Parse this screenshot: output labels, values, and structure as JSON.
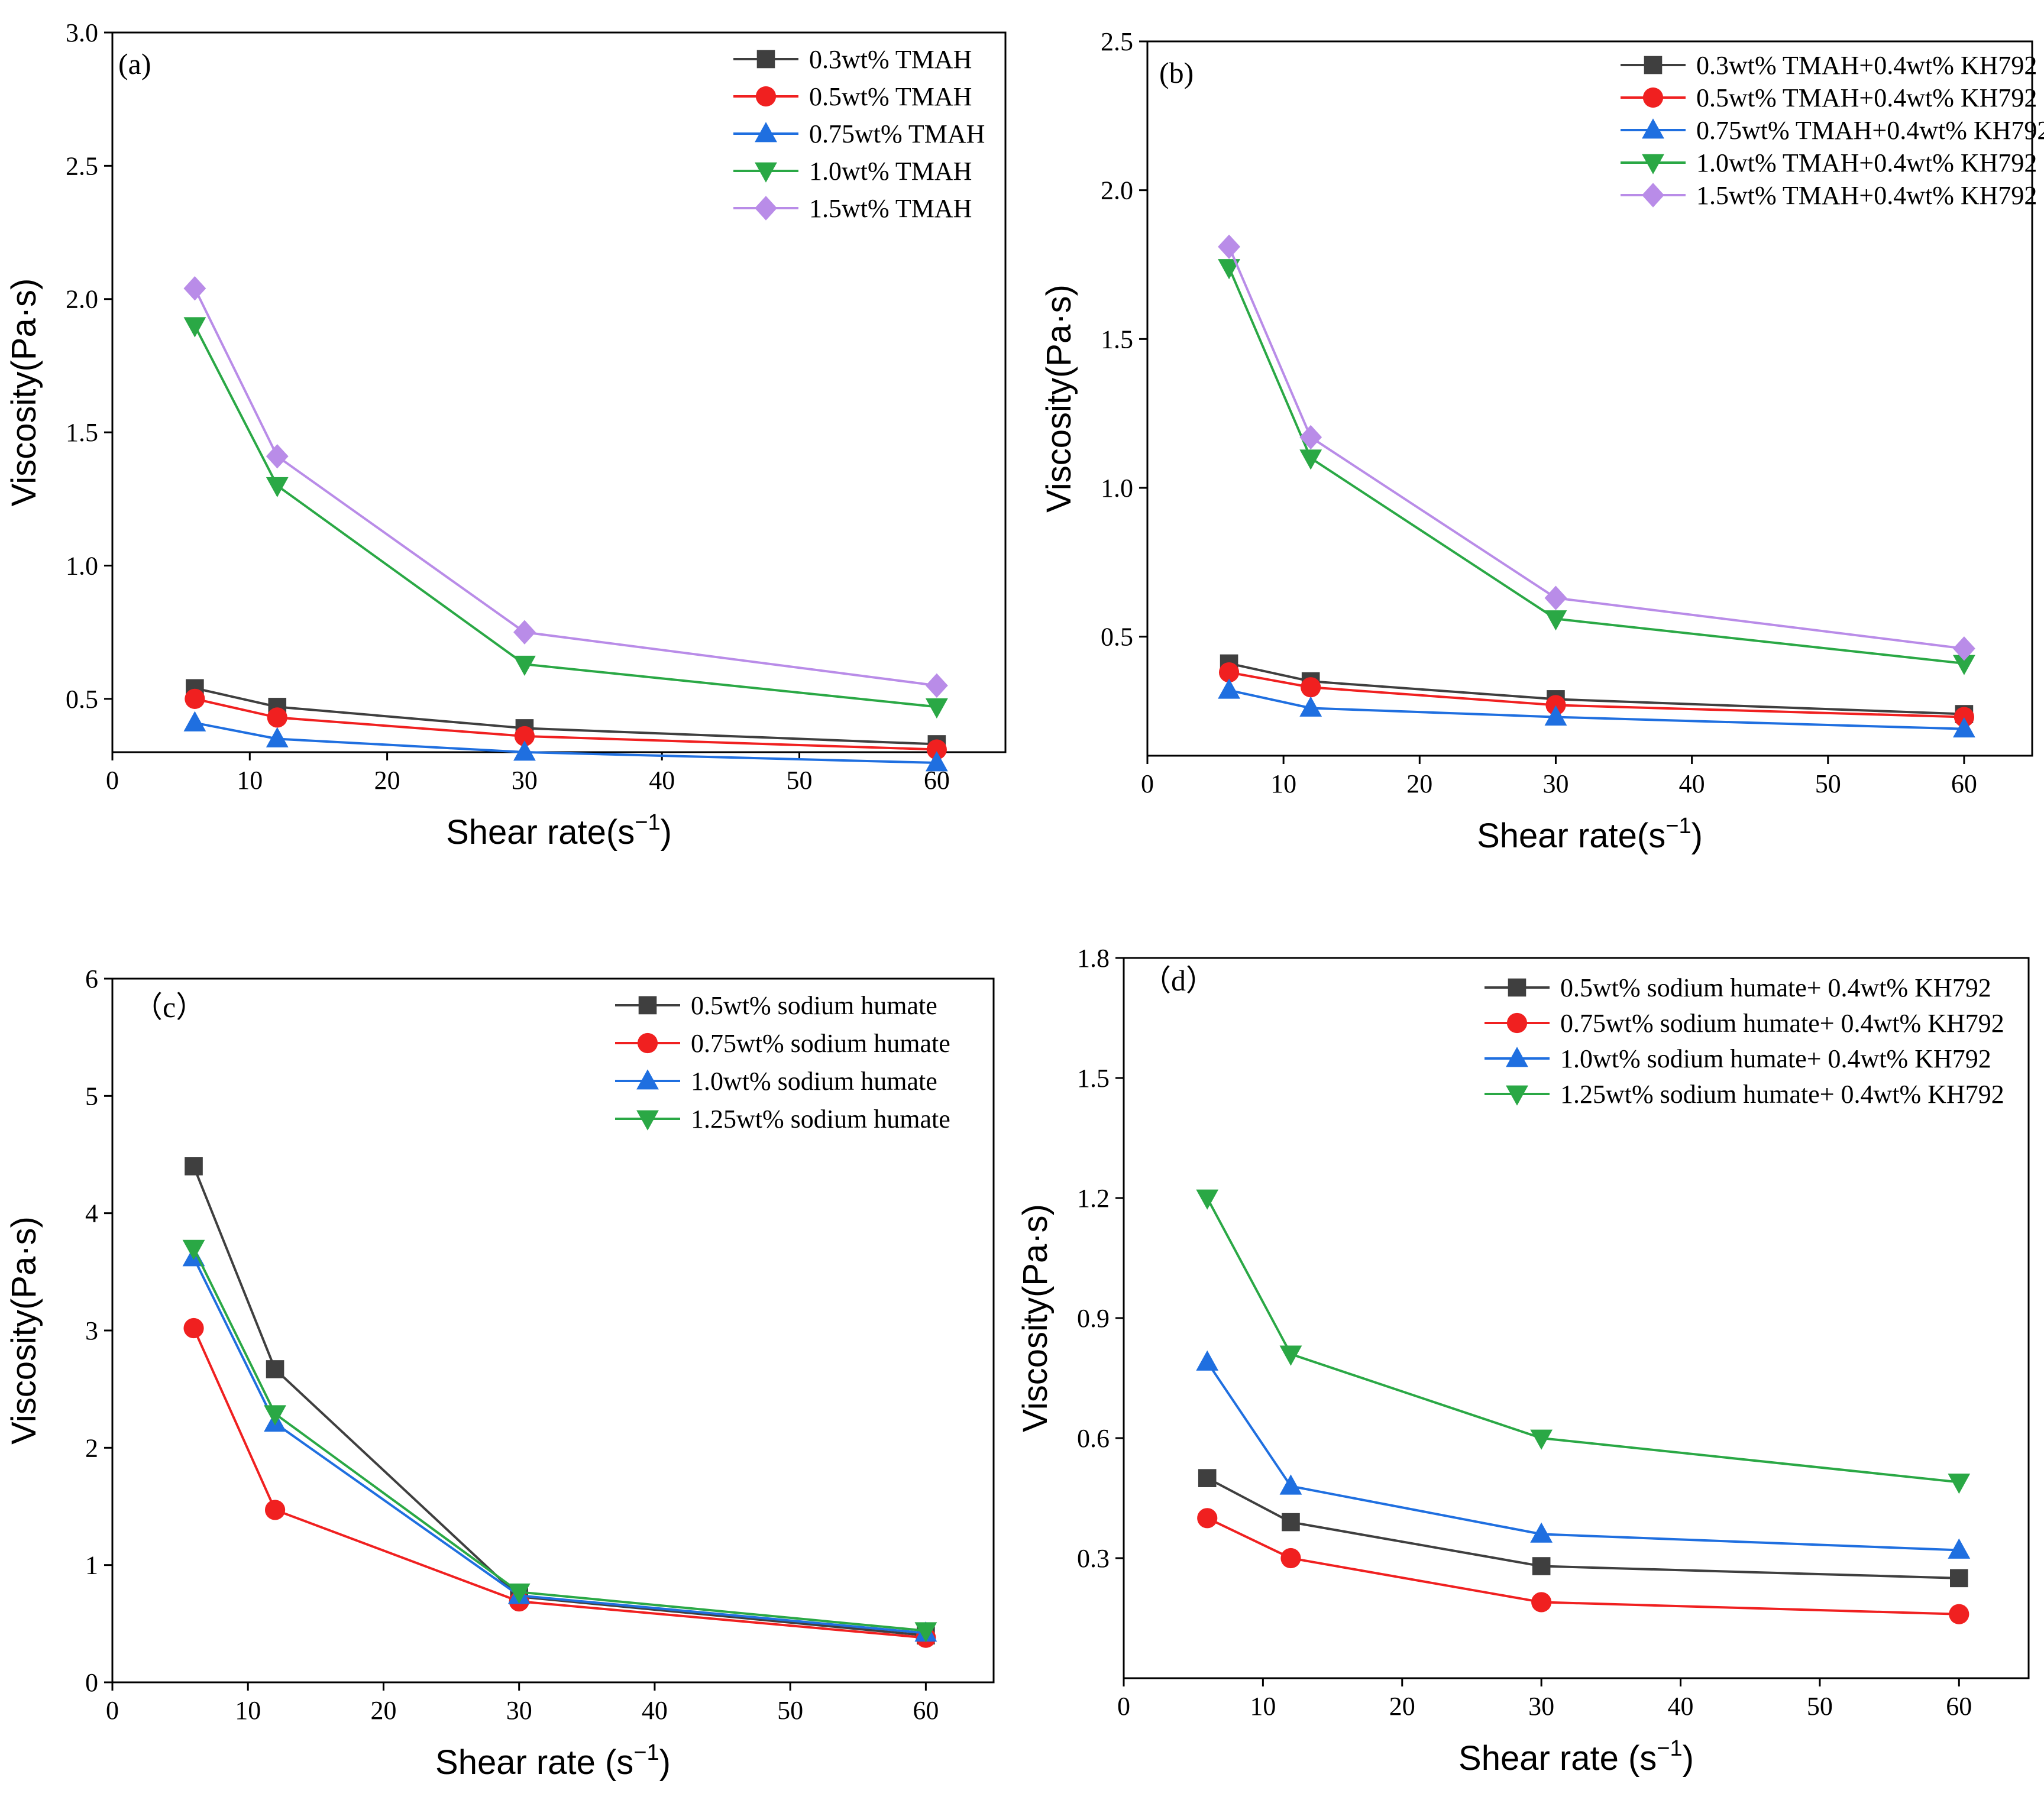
{
  "colors": {
    "black": "#3f3f3f",
    "red": "#f02020",
    "blue": "#1f6fe0",
    "green": "#2aa845",
    "purple": "#b98ce8"
  },
  "chart_data": [
    {
      "type": "line",
      "panel_label": "(a)",
      "xlabel": "Shear rate(s",
      "xlabel_sup": "−1",
      "xlabel_end": ")",
      "ylabel": "Viscosity(Pa·s)",
      "xlim": [
        0,
        65
      ],
      "ylim": [
        0.3,
        3.0
      ],
      "xticks": [
        0,
        10,
        20,
        30,
        40,
        50,
        60
      ],
      "xtick_labels": [
        "0",
        "10",
        "20",
        "30",
        "40",
        "50",
        "60"
      ],
      "yticks": [
        0.5,
        1.0,
        1.5,
        2.0,
        2.5,
        3.0
      ],
      "ytick_labels": [
        "0.5",
        "1.0",
        "1.5",
        "2.0",
        "2.5",
        "3.0"
      ],
      "x": [
        6,
        12,
        30,
        60
      ],
      "series": [
        {
          "name": "0.3wt% TMAH",
          "color": "black",
          "marker": "square",
          "values": [
            0.54,
            0.47,
            0.39,
            0.33
          ]
        },
        {
          "name": "0.5wt% TMAH",
          "color": "red",
          "marker": "circle",
          "values": [
            0.5,
            0.43,
            0.36,
            0.31
          ]
        },
        {
          "name": "0.75wt% TMAH",
          "color": "blue",
          "marker": "triangle-up",
          "values": [
            0.41,
            0.35,
            0.3,
            0.26
          ]
        },
        {
          "name": "1.0wt% TMAH",
          "color": "green",
          "marker": "triangle-down",
          "values": [
            1.9,
            1.3,
            0.63,
            0.47
          ]
        },
        {
          "name": "1.5wt% TMAH",
          "color": "purple",
          "marker": "diamond",
          "values": [
            2.04,
            1.41,
            0.75,
            0.55
          ]
        }
      ]
    },
    {
      "type": "line",
      "panel_label": "(b)",
      "xlabel": "Shear rate(s",
      "xlabel_sup": "−1",
      "xlabel_end": ")",
      "ylabel": "Viscosity(Pa·s)",
      "xlim": [
        0,
        65
      ],
      "ylim": [
        0.1,
        2.5
      ],
      "xticks": [
        0,
        10,
        20,
        30,
        40,
        50,
        60
      ],
      "xtick_labels": [
        "0",
        "10",
        "20",
        "30",
        "40",
        "50",
        "60"
      ],
      "yticks": [
        0.5,
        1.0,
        1.5,
        2.0,
        2.5
      ],
      "ytick_labels": [
        "0.5",
        "1.0",
        "1.5",
        "2.0",
        "2.5"
      ],
      "x": [
        6,
        12,
        30,
        60
      ],
      "series": [
        {
          "name": "0.3wt% TMAH+0.4wt% KH792",
          "color": "black",
          "marker": "square",
          "values": [
            0.41,
            0.35,
            0.29,
            0.24
          ]
        },
        {
          "name": "0.5wt% TMAH+0.4wt% KH792",
          "color": "red",
          "marker": "circle",
          "values": [
            0.38,
            0.33,
            0.27,
            0.23
          ]
        },
        {
          "name": "0.75wt% TMAH+0.4wt% KH792",
          "color": "blue",
          "marker": "triangle-up",
          "values": [
            0.32,
            0.26,
            0.23,
            0.19
          ]
        },
        {
          "name": "1.0wt% TMAH+0.4wt% KH792",
          "color": "green",
          "marker": "triangle-down",
          "values": [
            1.74,
            1.1,
            0.56,
            0.41
          ]
        },
        {
          "name": "1.5wt% TMAH+0.4wt% KH792",
          "color": "purple",
          "marker": "diamond",
          "values": [
            1.81,
            1.17,
            0.63,
            0.46
          ]
        }
      ]
    },
    {
      "type": "line",
      "panel_label": "（c）",
      "xlabel": "Shear rate (s",
      "xlabel_sup": "−1",
      "xlabel_end": ")",
      "ylabel": "Viscosity(Pa·s)",
      "xlim": [
        0,
        65
      ],
      "ylim": [
        0,
        6
      ],
      "xticks": [
        0,
        10,
        20,
        30,
        40,
        50,
        60
      ],
      "xtick_labels": [
        "0",
        "10",
        "20",
        "30",
        "40",
        "50",
        "60"
      ],
      "yticks": [
        0,
        1,
        2,
        3,
        4,
        5,
        6
      ],
      "ytick_labels": [
        "0",
        "1",
        "2",
        "3",
        "4",
        "5",
        "6"
      ],
      "x": [
        6,
        12,
        30,
        60
      ],
      "series": [
        {
          "name": "0.5wt% sodium humate",
          "color": "black",
          "marker": "square",
          "values": [
            4.4,
            2.67,
            0.73,
            0.4
          ]
        },
        {
          "name": "0.75wt% sodium humate",
          "color": "red",
          "marker": "circle",
          "values": [
            3.02,
            1.47,
            0.69,
            0.38
          ]
        },
        {
          "name": "1.0wt% sodium humate",
          "color": "blue",
          "marker": "triangle-up",
          "values": [
            3.62,
            2.21,
            0.74,
            0.42
          ]
        },
        {
          "name": "1.25wt% sodium humate",
          "color": "green",
          "marker": "triangle-down",
          "values": [
            3.7,
            2.29,
            0.77,
            0.44
          ]
        }
      ]
    },
    {
      "type": "line",
      "panel_label": "（d）",
      "xlabel": "Shear rate (s",
      "xlabel_sup": "−1",
      "xlabel_end": ")",
      "ylabel": "Viscosity(Pa·s)",
      "xlim": [
        0,
        65
      ],
      "ylim": [
        0,
        1.8
      ],
      "xticks": [
        0,
        10,
        20,
        30,
        40,
        50,
        60
      ],
      "xtick_labels": [
        "0",
        "10",
        "20",
        "30",
        "40",
        "50",
        "60"
      ],
      "yticks": [
        0.3,
        0.6,
        0.9,
        1.2,
        1.5,
        1.8
      ],
      "ytick_labels": [
        "0.3",
        "0.6",
        "0.9",
        "1.2",
        "1.5",
        "1.8"
      ],
      "x": [
        6,
        12,
        30,
        60
      ],
      "series": [
        {
          "name": "0.5wt% sodium humate+ 0.4wt% KH792",
          "color": "black",
          "marker": "square",
          "values": [
            0.5,
            0.39,
            0.28,
            0.25
          ]
        },
        {
          "name": "0.75wt% sodium humate+ 0.4wt% KH792",
          "color": "red",
          "marker": "circle",
          "values": [
            0.4,
            0.3,
            0.19,
            0.16
          ]
        },
        {
          "name": "1.0wt% sodium humate+ 0.4wt% KH792",
          "color": "blue",
          "marker": "triangle-up",
          "values": [
            0.79,
            0.48,
            0.36,
            0.32
          ]
        },
        {
          "name": "1.25wt% sodium humate+ 0.4wt% KH792",
          "color": "green",
          "marker": "triangle-down",
          "values": [
            1.2,
            0.81,
            0.6,
            0.49
          ]
        }
      ]
    }
  ]
}
